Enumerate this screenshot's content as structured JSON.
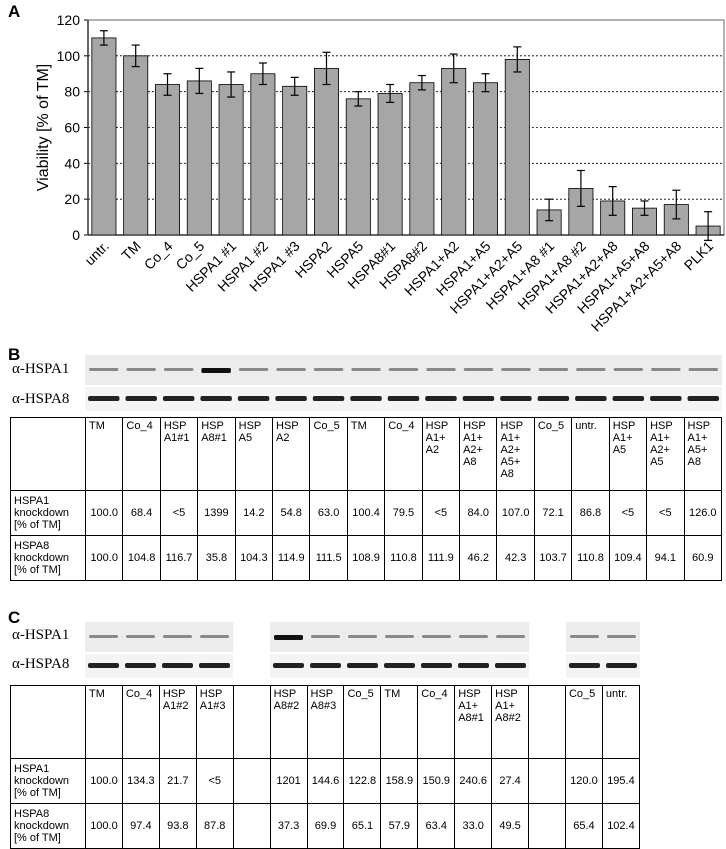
{
  "panel_labels": [
    "A",
    "B",
    "C"
  ],
  "chart_data": {
    "type": "bar",
    "ylabel": "Viability [% of TM]",
    "categories": [
      "untr.",
      "TM",
      "Co_4",
      "Co_5",
      "HSPA1 #1",
      "HSPA1 #2",
      "HSPA1 #3",
      "HSPA2",
      "HSPA5",
      "HSPA8#1",
      "HSPA8#2",
      "HSPA1+A2",
      "HSPA1+A5",
      "HSPA1+A2+A5",
      "HSPA1+A8 #1",
      "HSPA1+A8 #2",
      "HSPA1+A2+A8",
      "HSPA1+A5+A8",
      "HSPA1+A2+A5+A8",
      "PLK1"
    ],
    "values": [
      110,
      100,
      84,
      86,
      84,
      90,
      83,
      93,
      76,
      79,
      85,
      93,
      85,
      98,
      14,
      26,
      19,
      15,
      17,
      5
    ],
    "errors": [
      4,
      6,
      6,
      7,
      7,
      6,
      5,
      9,
      4,
      5,
      4,
      8,
      5,
      7,
      6,
      10,
      8,
      4,
      8,
      8
    ],
    "color": "#a6a6a6",
    "ylim": [
      0,
      120
    ],
    "yticks": [
      0,
      20,
      40,
      60,
      80,
      100,
      120
    ],
    "grid": true
  },
  "blot_b": {
    "labels": [
      "α-HSPA1",
      "α-HSPA8"
    ]
  },
  "table_b": {
    "columns": [
      "TM",
      "Co_4",
      "HSP\nA1#1",
      "HSP\nA8#1",
      "HSP\nA5",
      "HSP\nA2",
      "Co_5",
      "TM",
      "Co_4",
      "HSP\nA1+\nA2",
      "HSP\nA1+\nA2+\nA8",
      "HSP\nA1+\nA2+\nA5+\nA8",
      "Co_5",
      "untr.",
      "HSP\nA1+\nA5",
      "HSP\nA1+\nA2+\nA5",
      "HSP\nA1+\nA5+\nA8"
    ],
    "rows": [
      {
        "label": "HSPA1\nknockdown\n[% of TM]",
        "cells": [
          "100.0",
          "68.4",
          "<5",
          "1399",
          "14.2",
          "54.8",
          "63.0",
          "100.4",
          "79.5",
          "<5",
          "84.0",
          "107.0",
          "72.1",
          "86.8",
          "<5",
          "<5",
          "126.0"
        ]
      },
      {
        "label": "HSPA8\nknockdown\n[% of TM]",
        "cells": [
          "100.0",
          "104.8",
          "116.7",
          "35.8",
          "104.3",
          "114.9",
          "111.5",
          "108.9",
          "110.8",
          "111.9",
          "46.2",
          "42.3",
          "103.7",
          "110.8",
          "109.4",
          "94.1",
          "60.9"
        ]
      }
    ]
  },
  "blot_c": {
    "labels": [
      "α-HSPA1",
      "α-HSPA8"
    ]
  },
  "table_c": {
    "columns": [
      "TM",
      "Co_4",
      "HSP\nA1#2",
      "HSP\nA1#3",
      null,
      "HSP\nA8#2",
      "HSP\nA8#3",
      "Co_5",
      "TM",
      "Co_4",
      "HSP\nA1+\nA8#1",
      "HSP\nA1+\nA8#2",
      null,
      "Co_5",
      "untr."
    ],
    "rows": [
      {
        "label": "HSPA1\nknockdown\n[% of TM]",
        "cells": [
          "100.0",
          "134.3",
          "21.7",
          "<5",
          null,
          "1201",
          "144.6",
          "122.8",
          "158.9",
          "150.9",
          "240.6",
          "27.4",
          null,
          "120.0",
          "195.4"
        ]
      },
      {
        "label": "HSPA8\nknockdown\n[% of TM]",
        "cells": [
          "100.0",
          "97.4",
          "93.8",
          "87.8",
          null,
          "37.3",
          "69.9",
          "65.1",
          "57.9",
          "63.4",
          "33.0",
          "49.5",
          null,
          "65.4",
          "102.4"
        ]
      }
    ]
  }
}
